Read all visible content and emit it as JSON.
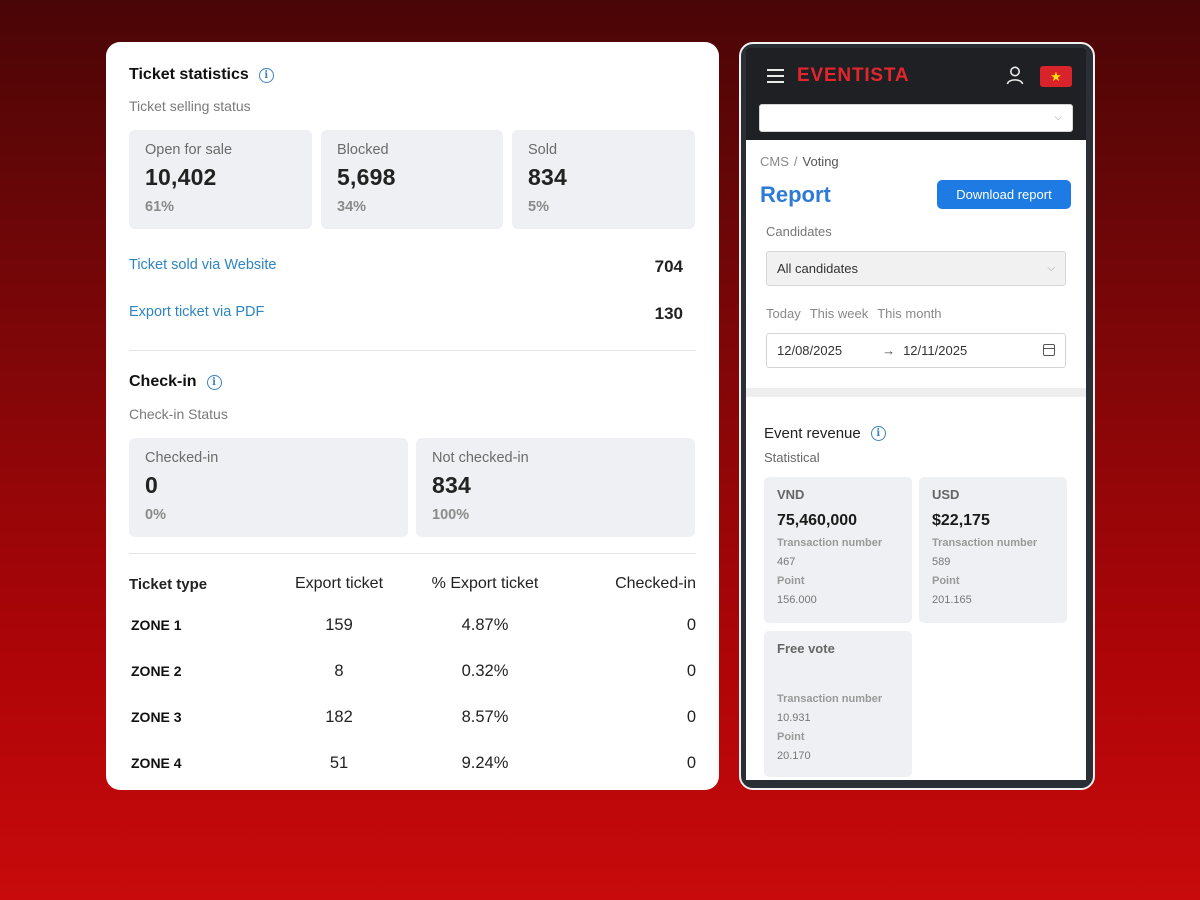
{
  "ticket_stats": {
    "title": "Ticket statistics",
    "subtitle": "Ticket selling status",
    "cards": [
      {
        "label": "Open for sale",
        "value": "10,402",
        "percent": "61%"
      },
      {
        "label": "Blocked",
        "value": "5,698",
        "percent": "34%"
      },
      {
        "label": "Sold",
        "value": "834",
        "percent": "5%"
      }
    ],
    "links": [
      {
        "label": "Ticket sold via Website",
        "value": "704"
      },
      {
        "label": "Export ticket via PDF",
        "value": "130"
      }
    ]
  },
  "checkin": {
    "title": "Check-in",
    "subtitle": "Check-in Status",
    "cards": [
      {
        "label": "Checked-in",
        "value": "0",
        "percent": "0%"
      },
      {
        "label": "Not checked-in",
        "value": "834",
        "percent": "100%"
      }
    ]
  },
  "ticket_table": {
    "headers": [
      "Ticket type",
      "Export ticket",
      "% Export ticket",
      "Checked-in"
    ],
    "rows": [
      [
        "ZONE 1",
        "159",
        "4.87%",
        "0"
      ],
      [
        "ZONE 2",
        "8",
        "0.32%",
        "0"
      ],
      [
        "ZONE 3",
        "182",
        "8.57%",
        "0"
      ],
      [
        "ZONE 4",
        "51",
        "9.24%",
        "0"
      ]
    ]
  },
  "mobile": {
    "brand": "EVENTISTA",
    "flag_star": "★",
    "breadcrumb": {
      "root": "CMS",
      "sep": "/",
      "current": "Voting"
    },
    "page_title": "Report",
    "download_button": "Download report",
    "candidates_label": "Candidates",
    "candidates_value": "All candidates",
    "quick_ranges": [
      "Today",
      "This week",
      "This month"
    ],
    "date_from": "12/08/2025",
    "date_arrow": "→",
    "date_to": "12/11/2025",
    "revenue_title": "Event revenue",
    "revenue_subtitle": "Statistical",
    "revenue_cards": [
      {
        "currency": "VND",
        "amount": "75,460,000",
        "tx_label": "Transaction number",
        "tx_value": "467",
        "point_label": "Point",
        "point_value": "156.000"
      },
      {
        "currency": "USD",
        "amount": "$22,175",
        "tx_label": "Transaction number",
        "tx_value": "589",
        "point_label": "Point",
        "point_value": "201.165"
      },
      {
        "currency": "Free vote",
        "amount": "",
        "tx_label": "Transaction number",
        "tx_value": "10.931",
        "point_label": "Point",
        "point_value": "20.170"
      }
    ]
  },
  "icons": {
    "info": "i",
    "chevron": "⌵"
  }
}
